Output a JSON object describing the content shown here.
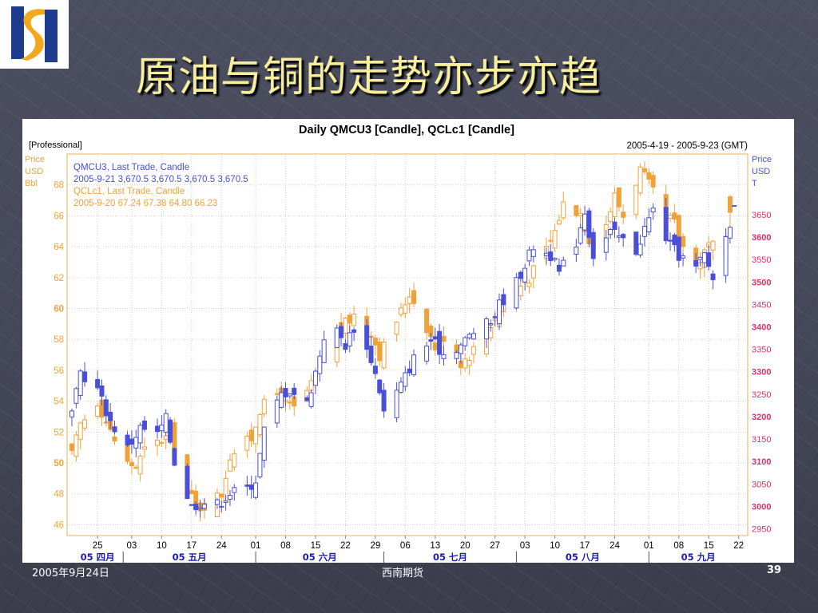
{
  "slide": {
    "title": "原油与铜的走势亦步亦趋",
    "footer_date": "2005年9月24日",
    "footer_center": "西南期货",
    "page_number": "39"
  },
  "colors": {
    "oil": "#f0a23a",
    "copper": "#4a4fd8",
    "left_axis_text": "#f0a23a",
    "right_axis_text": "#d8336b",
    "title_text": "#f7ee9c",
    "logo_blue": "#1d3c8d",
    "logo_gold": "#f2a81d"
  },
  "chart_data": {
    "type": "candlestick",
    "title": "Daily QMCU3 [Candle], QCLc1 [Candle]",
    "tag": "[Professional]",
    "date_range": "2005-4-19 - 2005-9-23 (GMT)",
    "info_lines": [
      "QMCU3, Last Trade, Candle",
      "2005-9-21 3,670.5 3,670.5 3,670.5 3,670.5",
      "QCLc1, Last Trade, Candle",
      "2005-9-20 67.24 67.38 64.80 66.23"
    ],
    "left_axis": {
      "label": [
        "Price",
        "USD",
        "Bbl"
      ],
      "ylim": [
        45.3,
        70.0
      ],
      "ticks": [
        46,
        48,
        50,
        52,
        54,
        56,
        58,
        60,
        62,
        64,
        66,
        68
      ],
      "bold_ticks": [
        50,
        60
      ]
    },
    "right_axis": {
      "label": [
        "Price",
        "USD",
        "T"
      ],
      "ylim": [
        2935,
        3785
      ],
      "ticks": [
        2950,
        3000,
        3050,
        3100,
        3150,
        3200,
        3250,
        3300,
        3350,
        3400,
        3450,
        3500,
        3550,
        3600,
        3650
      ],
      "bold_ticks": [
        3000,
        3100,
        3200,
        3300,
        3400,
        3500,
        3600
      ]
    },
    "x_axis": {
      "start": "2005-04-19",
      "end": "2005-09-23",
      "day_ticks": [
        {
          "date": "2005-04-25",
          "label": "25"
        },
        {
          "date": "2005-05-03",
          "label": "03"
        },
        {
          "date": "2005-05-10",
          "label": "10"
        },
        {
          "date": "2005-05-17",
          "label": "17"
        },
        {
          "date": "2005-05-24",
          "label": "24"
        },
        {
          "date": "2005-06-01",
          "label": "01"
        },
        {
          "date": "2005-06-08",
          "label": "08"
        },
        {
          "date": "2005-06-15",
          "label": "15"
        },
        {
          "date": "2005-06-22",
          "label": "22"
        },
        {
          "date": "2005-06-29",
          "label": "29"
        },
        {
          "date": "2005-07-06",
          "label": "06"
        },
        {
          "date": "2005-07-13",
          "label": "13"
        },
        {
          "date": "2005-07-20",
          "label": "20"
        },
        {
          "date": "2005-07-27",
          "label": "27"
        },
        {
          "date": "2005-08-03",
          "label": "03"
        },
        {
          "date": "2005-08-10",
          "label": "10"
        },
        {
          "date": "2005-08-17",
          "label": "17"
        },
        {
          "date": "2005-08-24",
          "label": "24"
        },
        {
          "date": "2005-09-01",
          "label": "01"
        },
        {
          "date": "2005-09-08",
          "label": "08"
        },
        {
          "date": "2005-09-15",
          "label": "15"
        },
        {
          "date": "2005-09-22",
          "label": "22"
        }
      ],
      "month_labels": [
        {
          "date": "2005-04-19",
          "label": "05 四月"
        },
        {
          "date": "2005-05-01",
          "label": "05 五月"
        },
        {
          "date": "2005-06-01",
          "label": "05 六月"
        },
        {
          "date": "2005-07-01",
          "label": "05 七月"
        },
        {
          "date": "2005-08-01",
          "label": "05 八月"
        },
        {
          "date": "2005-09-01",
          "label": "05 九月"
        }
      ]
    },
    "grid": true,
    "series": [
      {
        "name": "QMCU3",
        "axis": "right",
        "key_points": [
          [
            "2005-04-19",
            3200
          ],
          [
            "2005-04-21",
            3300
          ],
          [
            "2005-04-25",
            3260
          ],
          [
            "2005-04-28",
            3190
          ],
          [
            "2005-05-02",
            3130
          ],
          [
            "2005-05-05",
            3175
          ],
          [
            "2005-05-09",
            3160
          ],
          [
            "2005-05-11",
            3195
          ],
          [
            "2005-05-13",
            3100
          ],
          [
            "2005-05-17",
            3000
          ],
          [
            "2005-05-19",
            3010
          ],
          [
            "2005-05-23",
            3005
          ],
          [
            "2005-05-26",
            3030
          ],
          [
            "2005-05-30",
            3040
          ],
          [
            "2005-06-01",
            3060
          ],
          [
            "2005-06-03",
            3170
          ],
          [
            "2005-06-07",
            3250
          ],
          [
            "2005-06-09",
            3260
          ],
          [
            "2005-06-13",
            3230
          ],
          [
            "2005-06-15",
            3300
          ],
          [
            "2005-06-17",
            3380
          ],
          [
            "2005-06-20",
            3390
          ],
          [
            "2005-06-22",
            3360
          ],
          [
            "2005-06-24",
            3400
          ],
          [
            "2005-06-28",
            3330
          ],
          [
            "2005-06-30",
            3260
          ],
          [
            "2005-07-01",
            3210
          ],
          [
            "2005-07-05",
            3270
          ],
          [
            "2005-07-08",
            3330
          ],
          [
            "2005-07-12",
            3370
          ],
          [
            "2005-07-15",
            3340
          ],
          [
            "2005-07-19",
            3360
          ],
          [
            "2005-07-22",
            3390
          ],
          [
            "2005-07-26",
            3410
          ],
          [
            "2005-07-28",
            3450
          ],
          [
            "2005-08-01",
            3500
          ],
          [
            "2005-08-03",
            3540
          ],
          [
            "2005-08-05",
            3580
          ],
          [
            "2005-08-09",
            3560
          ],
          [
            "2005-08-11",
            3520
          ],
          [
            "2005-08-15",
            3590
          ],
          [
            "2005-08-17",
            3660
          ],
          [
            "2005-08-19",
            3560
          ],
          [
            "2005-08-23",
            3610
          ],
          [
            "2005-08-25",
            3600
          ],
          [
            "2005-08-29",
            3570
          ],
          [
            "2005-08-31",
            3620
          ],
          [
            "2005-09-02",
            3660
          ],
          [
            "2005-09-06",
            3580
          ],
          [
            "2005-09-08",
            3560
          ],
          [
            "2005-09-12",
            3530
          ],
          [
            "2005-09-14",
            3560
          ],
          [
            "2005-09-16",
            3510
          ],
          [
            "2005-09-19",
            3600
          ],
          [
            "2005-09-21",
            3670
          ]
        ],
        "last": {
          "date": "2005-09-21",
          "open": 3670.5,
          "high": 3670.5,
          "low": 3670.5,
          "close": 3670.5
        }
      },
      {
        "name": "QCLc1",
        "axis": "left",
        "key_points": [
          [
            "2005-04-19",
            50.5
          ],
          [
            "2005-04-21",
            52.5
          ],
          [
            "2005-04-25",
            54.0
          ],
          [
            "2005-04-28",
            52.0
          ],
          [
            "2005-05-02",
            50.0
          ],
          [
            "2005-05-04",
            49.8
          ],
          [
            "2005-05-06",
            50.8
          ],
          [
            "2005-05-10",
            51.5
          ],
          [
            "2005-05-12",
            51.8
          ],
          [
            "2005-05-16",
            48.5
          ],
          [
            "2005-05-18",
            47.0
          ],
          [
            "2005-05-20",
            47.3
          ],
          [
            "2005-05-24",
            48.0
          ],
          [
            "2005-05-26",
            50.5
          ],
          [
            "2005-05-31",
            51.6
          ],
          [
            "2005-06-02",
            53.5
          ],
          [
            "2005-06-06",
            54.5
          ],
          [
            "2005-06-08",
            53.8
          ],
          [
            "2005-06-10",
            53.5
          ],
          [
            "2005-06-14",
            55.0
          ],
          [
            "2005-06-16",
            56.5
          ],
          [
            "2005-06-20",
            58.5
          ],
          [
            "2005-06-22",
            59.0
          ],
          [
            "2005-06-24",
            59.6
          ],
          [
            "2005-06-28",
            58.5
          ],
          [
            "2005-06-30",
            57.0
          ],
          [
            "2005-07-05",
            59.8
          ],
          [
            "2005-07-07",
            61.0
          ],
          [
            "2005-07-11",
            58.8
          ],
          [
            "2005-07-13",
            57.5
          ],
          [
            "2005-07-15",
            58.2
          ],
          [
            "2005-07-19",
            56.5
          ],
          [
            "2005-07-21",
            57.0
          ],
          [
            "2005-07-25",
            58.5
          ],
          [
            "2005-07-27",
            59.5
          ],
          [
            "2005-07-29",
            60.6
          ],
          [
            "2005-08-02",
            61.5
          ],
          [
            "2005-08-04",
            62.0
          ],
          [
            "2005-08-08",
            63.8
          ],
          [
            "2005-08-10",
            65.0
          ],
          [
            "2005-08-12",
            66.8
          ],
          [
            "2005-08-16",
            66.2
          ],
          [
            "2005-08-18",
            64.5
          ],
          [
            "2005-08-22",
            65.5
          ],
          [
            "2005-08-24",
            67.3
          ],
          [
            "2005-08-26",
            66.0
          ],
          [
            "2005-08-30",
            69.0
          ],
          [
            "2005-09-01",
            68.0
          ],
          [
            "2005-09-05",
            66.0
          ],
          [
            "2005-09-07",
            65.5
          ],
          [
            "2005-09-09",
            64.0
          ],
          [
            "2005-09-13",
            63.0
          ],
          [
            "2005-09-15",
            64.5
          ],
          [
            "2005-09-19",
            63.0
          ],
          [
            "2005-09-20",
            66.23
          ]
        ],
        "last": {
          "date": "2005-09-20",
          "open": 67.24,
          "high": 67.38,
          "low": 64.8,
          "close": 66.23
        }
      }
    ]
  }
}
